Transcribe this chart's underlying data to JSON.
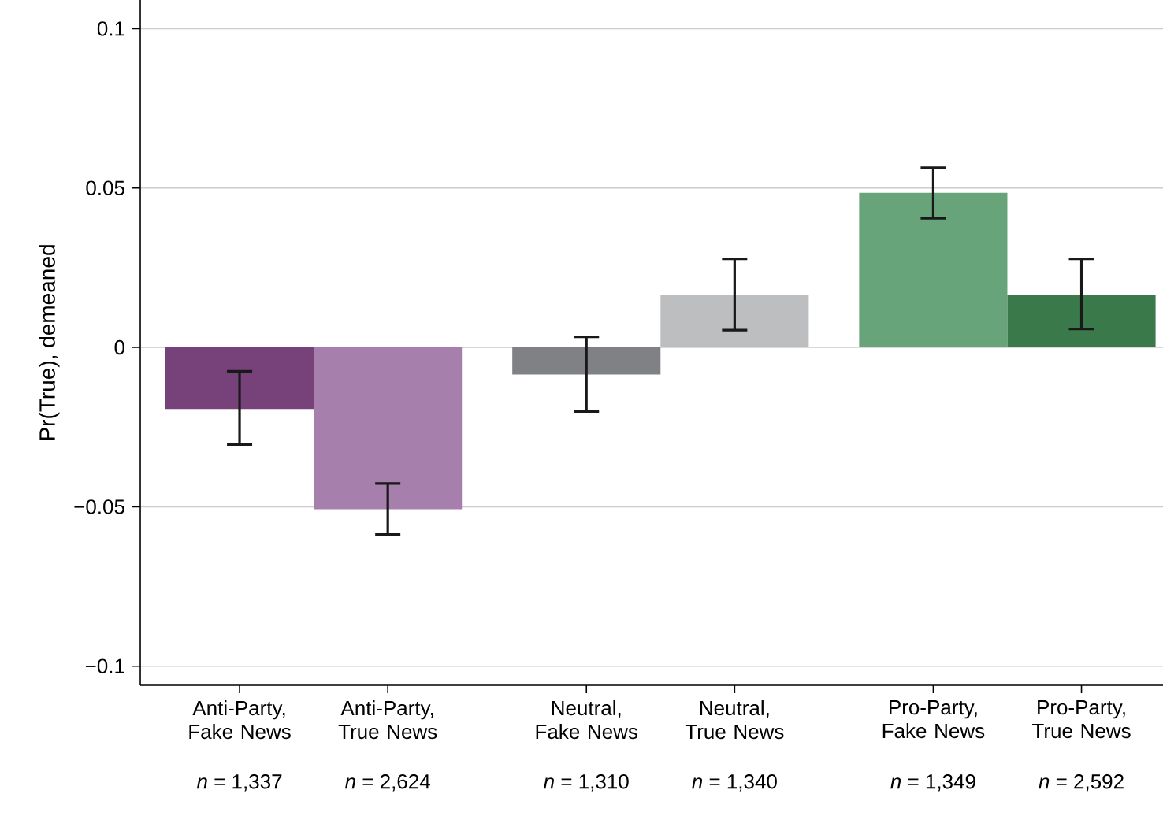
{
  "chart_data": {
    "type": "bar",
    "ylabel": "Pr(True), demeaned",
    "categories": [
      "Anti-Party, Fake News",
      "Anti-Party, True News",
      "Neutral, Fake News",
      "Neutral, True News",
      "Pro-Party, Fake News",
      "Pro-Party, True News"
    ],
    "values": [
      -0.0193,
      -0.0508,
      -0.0085,
      0.0164,
      0.0485,
      0.0164
    ],
    "errors": [
      [
        -0.0305,
        -0.0075
      ],
      [
        -0.0587,
        -0.0427
      ],
      [
        -0.0201,
        0.0033
      ],
      [
        0.0054,
        0.0278
      ],
      [
        0.0405,
        0.0564
      ],
      [
        0.0058,
        0.0278
      ]
    ],
    "colors": [
      "#77427a",
      "#a67fad",
      "#808184",
      "#bdbec0",
      "#68a47a",
      "#3a7a4a"
    ],
    "ylim": [
      -0.106,
      0.109
    ],
    "yticks": [
      0.1,
      0.05,
      0,
      {
        "value": -0.05,
        "label": "−0.05"
      },
      {
        "value": -0.1,
        "label": "−0.1"
      }
    ],
    "grid": "y",
    "annotations": [
      "*n* = 1,337",
      "*n* = 2,624",
      "*n* = 1,310",
      "*n* = 1,340",
      "*n* = 1,349",
      "*n* = 2,592"
    ]
  }
}
